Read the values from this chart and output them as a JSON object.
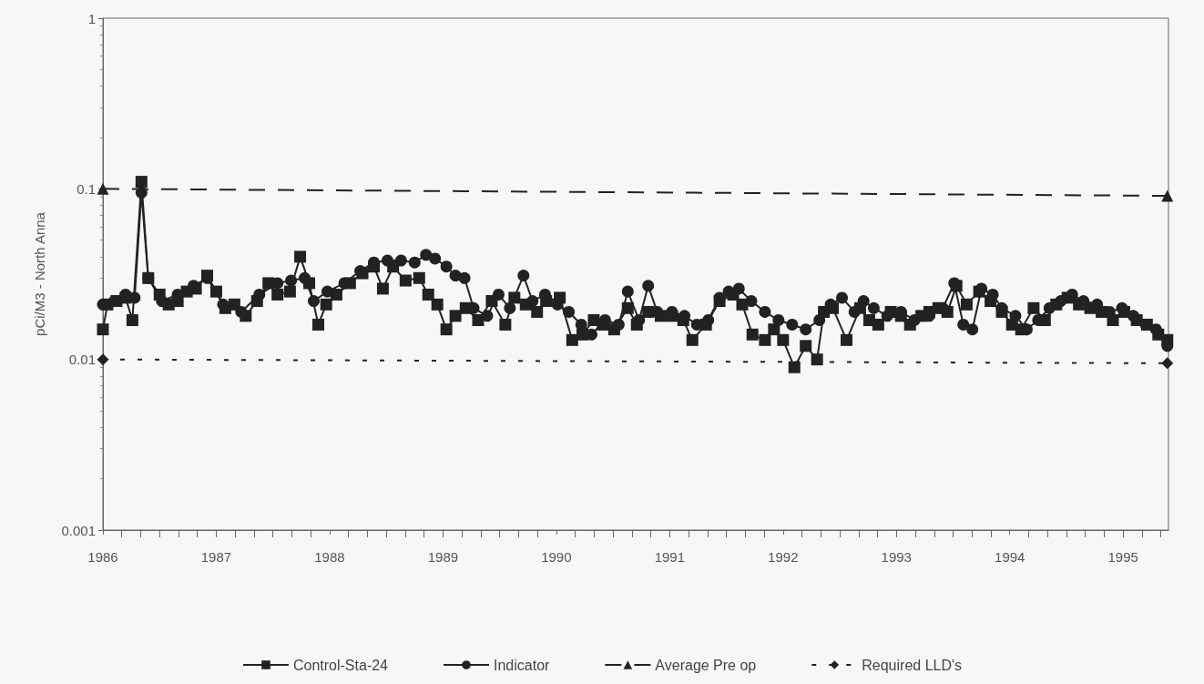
{
  "chart_data": {
    "type": "line",
    "ylabel": "pCi/M3 - North Anna",
    "log": "y",
    "xlim": [
      1986,
      1995.4
    ],
    "xticks": [
      1986,
      1987,
      1988,
      1989,
      1990,
      1991,
      1992,
      1993,
      1994,
      1995
    ],
    "ylim": [
      0.001,
      1
    ],
    "yticks": [
      0.001,
      0.01,
      0.1,
      1
    ],
    "grid": false,
    "legend": "bottom",
    "series": [
      {
        "name": "Control-Sta-24",
        "color": "#222222",
        "marker": "square",
        "line_style": "solid",
        "x": [
          1986.0,
          1986.04,
          1986.12,
          1986.2,
          1986.26,
          1986.34,
          1986.4,
          1986.5,
          1986.58,
          1986.66,
          1986.74,
          1986.82,
          1986.92,
          1987.0,
          1987.08,
          1987.16,
          1987.26,
          1987.36,
          1987.46,
          1987.54,
          1987.65,
          1987.74,
          1987.82,
          1987.9,
          1987.97,
          1988.06,
          1988.18,
          1988.29,
          1988.39,
          1988.47,
          1988.56,
          1988.67,
          1988.79,
          1988.87,
          1988.95,
          1989.03,
          1989.11,
          1989.2,
          1989.31,
          1989.43,
          1989.55,
          1989.63,
          1989.73,
          1989.83,
          1989.91,
          1990.03,
          1990.14,
          1990.23,
          1990.33,
          1990.41,
          1990.51,
          1990.63,
          1990.71,
          1990.81,
          1990.92,
          1991.02,
          1991.12,
          1991.2,
          1991.32,
          1991.44,
          1991.56,
          1991.64,
          1991.73,
          1991.84,
          1991.92,
          1992.0,
          1992.1,
          1992.2,
          1992.3,
          1992.36,
          1992.44,
          1992.56,
          1992.68,
          1992.76,
          1992.84,
          1992.95,
          1993.04,
          1993.12,
          1993.22,
          1993.29,
          1993.37,
          1993.45,
          1993.53,
          1993.62,
          1993.73,
          1993.83,
          1993.93,
          1994.02,
          1994.1,
          1994.21,
          1994.31,
          1994.41,
          1994.51,
          1994.61,
          1994.71,
          1994.81,
          1994.91,
          1995.01,
          1995.12,
          1995.21,
          1995.31,
          1995.39
        ],
        "values": [
          0.015,
          0.021,
          0.022,
          0.023,
          0.017,
          0.11,
          0.03,
          0.024,
          0.021,
          0.022,
          0.025,
          0.026,
          0.031,
          0.025,
          0.02,
          0.021,
          0.018,
          0.022,
          0.028,
          0.024,
          0.025,
          0.04,
          0.028,
          0.016,
          0.021,
          0.024,
          0.028,
          0.032,
          0.035,
          0.026,
          0.035,
          0.029,
          0.03,
          0.024,
          0.021,
          0.015,
          0.018,
          0.02,
          0.017,
          0.022,
          0.016,
          0.023,
          0.021,
          0.019,
          0.022,
          0.023,
          0.013,
          0.014,
          0.017,
          0.016,
          0.015,
          0.02,
          0.016,
          0.019,
          0.018,
          0.018,
          0.017,
          0.013,
          0.016,
          0.022,
          0.024,
          0.021,
          0.014,
          0.013,
          0.015,
          0.013,
          0.009,
          0.012,
          0.01,
          0.019,
          0.02,
          0.013,
          0.02,
          0.017,
          0.016,
          0.019,
          0.018,
          0.016,
          0.018,
          0.019,
          0.02,
          0.019,
          0.027,
          0.021,
          0.025,
          0.022,
          0.019,
          0.016,
          0.015,
          0.02,
          0.017,
          0.021,
          0.023,
          0.021,
          0.02,
          0.019,
          0.017,
          0.019,
          0.017,
          0.016,
          0.014,
          0.013
        ]
      },
      {
        "name": "Indicator",
        "color": "#222222",
        "marker": "circle",
        "line_style": "solid",
        "x": [
          1986.0,
          1986.1,
          1986.2,
          1986.28,
          1986.34,
          1986.4,
          1986.52,
          1986.66,
          1986.8,
          1986.92,
          1987.06,
          1987.22,
          1987.38,
          1987.54,
          1987.66,
          1987.78,
          1987.86,
          1987.98,
          1988.13,
          1988.27,
          1988.39,
          1988.51,
          1988.63,
          1988.75,
          1988.85,
          1988.93,
          1989.03,
          1989.11,
          1989.19,
          1989.27,
          1989.39,
          1989.49,
          1989.59,
          1989.71,
          1989.79,
          1989.9,
          1990.01,
          1990.11,
          1990.22,
          1990.31,
          1990.43,
          1990.55,
          1990.63,
          1990.73,
          1990.81,
          1990.89,
          1991.02,
          1991.13,
          1991.24,
          1991.34,
          1991.44,
          1991.52,
          1991.61,
          1991.72,
          1991.84,
          1991.96,
          1992.08,
          1992.2,
          1992.32,
          1992.42,
          1992.52,
          1992.63,
          1992.71,
          1992.8,
          1992.92,
          1993.04,
          1993.16,
          1993.29,
          1993.41,
          1993.51,
          1993.59,
          1993.67,
          1993.75,
          1993.85,
          1993.93,
          1994.05,
          1994.15,
          1994.25,
          1994.35,
          1994.45,
          1994.55,
          1994.65,
          1994.77,
          1994.88,
          1994.99,
          1995.09,
          1995.2,
          1995.29,
          1995.39
        ],
        "values": [
          0.021,
          0.022,
          0.024,
          0.023,
          0.095,
          0.03,
          0.022,
          0.024,
          0.027,
          0.03,
          0.021,
          0.019,
          0.024,
          0.028,
          0.029,
          0.03,
          0.022,
          0.025,
          0.028,
          0.033,
          0.037,
          0.038,
          0.038,
          0.037,
          0.041,
          0.039,
          0.035,
          0.031,
          0.03,
          0.02,
          0.018,
          0.024,
          0.02,
          0.031,
          0.022,
          0.024,
          0.021,
          0.019,
          0.016,
          0.014,
          0.017,
          0.016,
          0.025,
          0.017,
          0.027,
          0.019,
          0.019,
          0.018,
          0.016,
          0.017,
          0.023,
          0.025,
          0.026,
          0.022,
          0.019,
          0.017,
          0.016,
          0.015,
          0.017,
          0.021,
          0.023,
          0.019,
          0.022,
          0.02,
          0.018,
          0.019,
          0.017,
          0.018,
          0.02,
          0.028,
          0.016,
          0.015,
          0.026,
          0.024,
          0.02,
          0.018,
          0.015,
          0.017,
          0.02,
          0.022,
          0.024,
          0.022,
          0.021,
          0.019,
          0.02,
          0.018,
          0.016,
          0.015,
          0.012
        ]
      },
      {
        "name": "Average Pre op",
        "color": "#222222",
        "marker": "triangle",
        "line_style": "dashed",
        "x": [
          1986.0,
          1995.39
        ],
        "values": [
          0.1,
          0.091
        ]
      },
      {
        "name": "Required LLD's",
        "color": "#222222",
        "marker": "diamond",
        "line_style": "dotted",
        "x": [
          1986.0,
          1995.39
        ],
        "values": [
          0.01,
          0.0095
        ]
      }
    ]
  }
}
